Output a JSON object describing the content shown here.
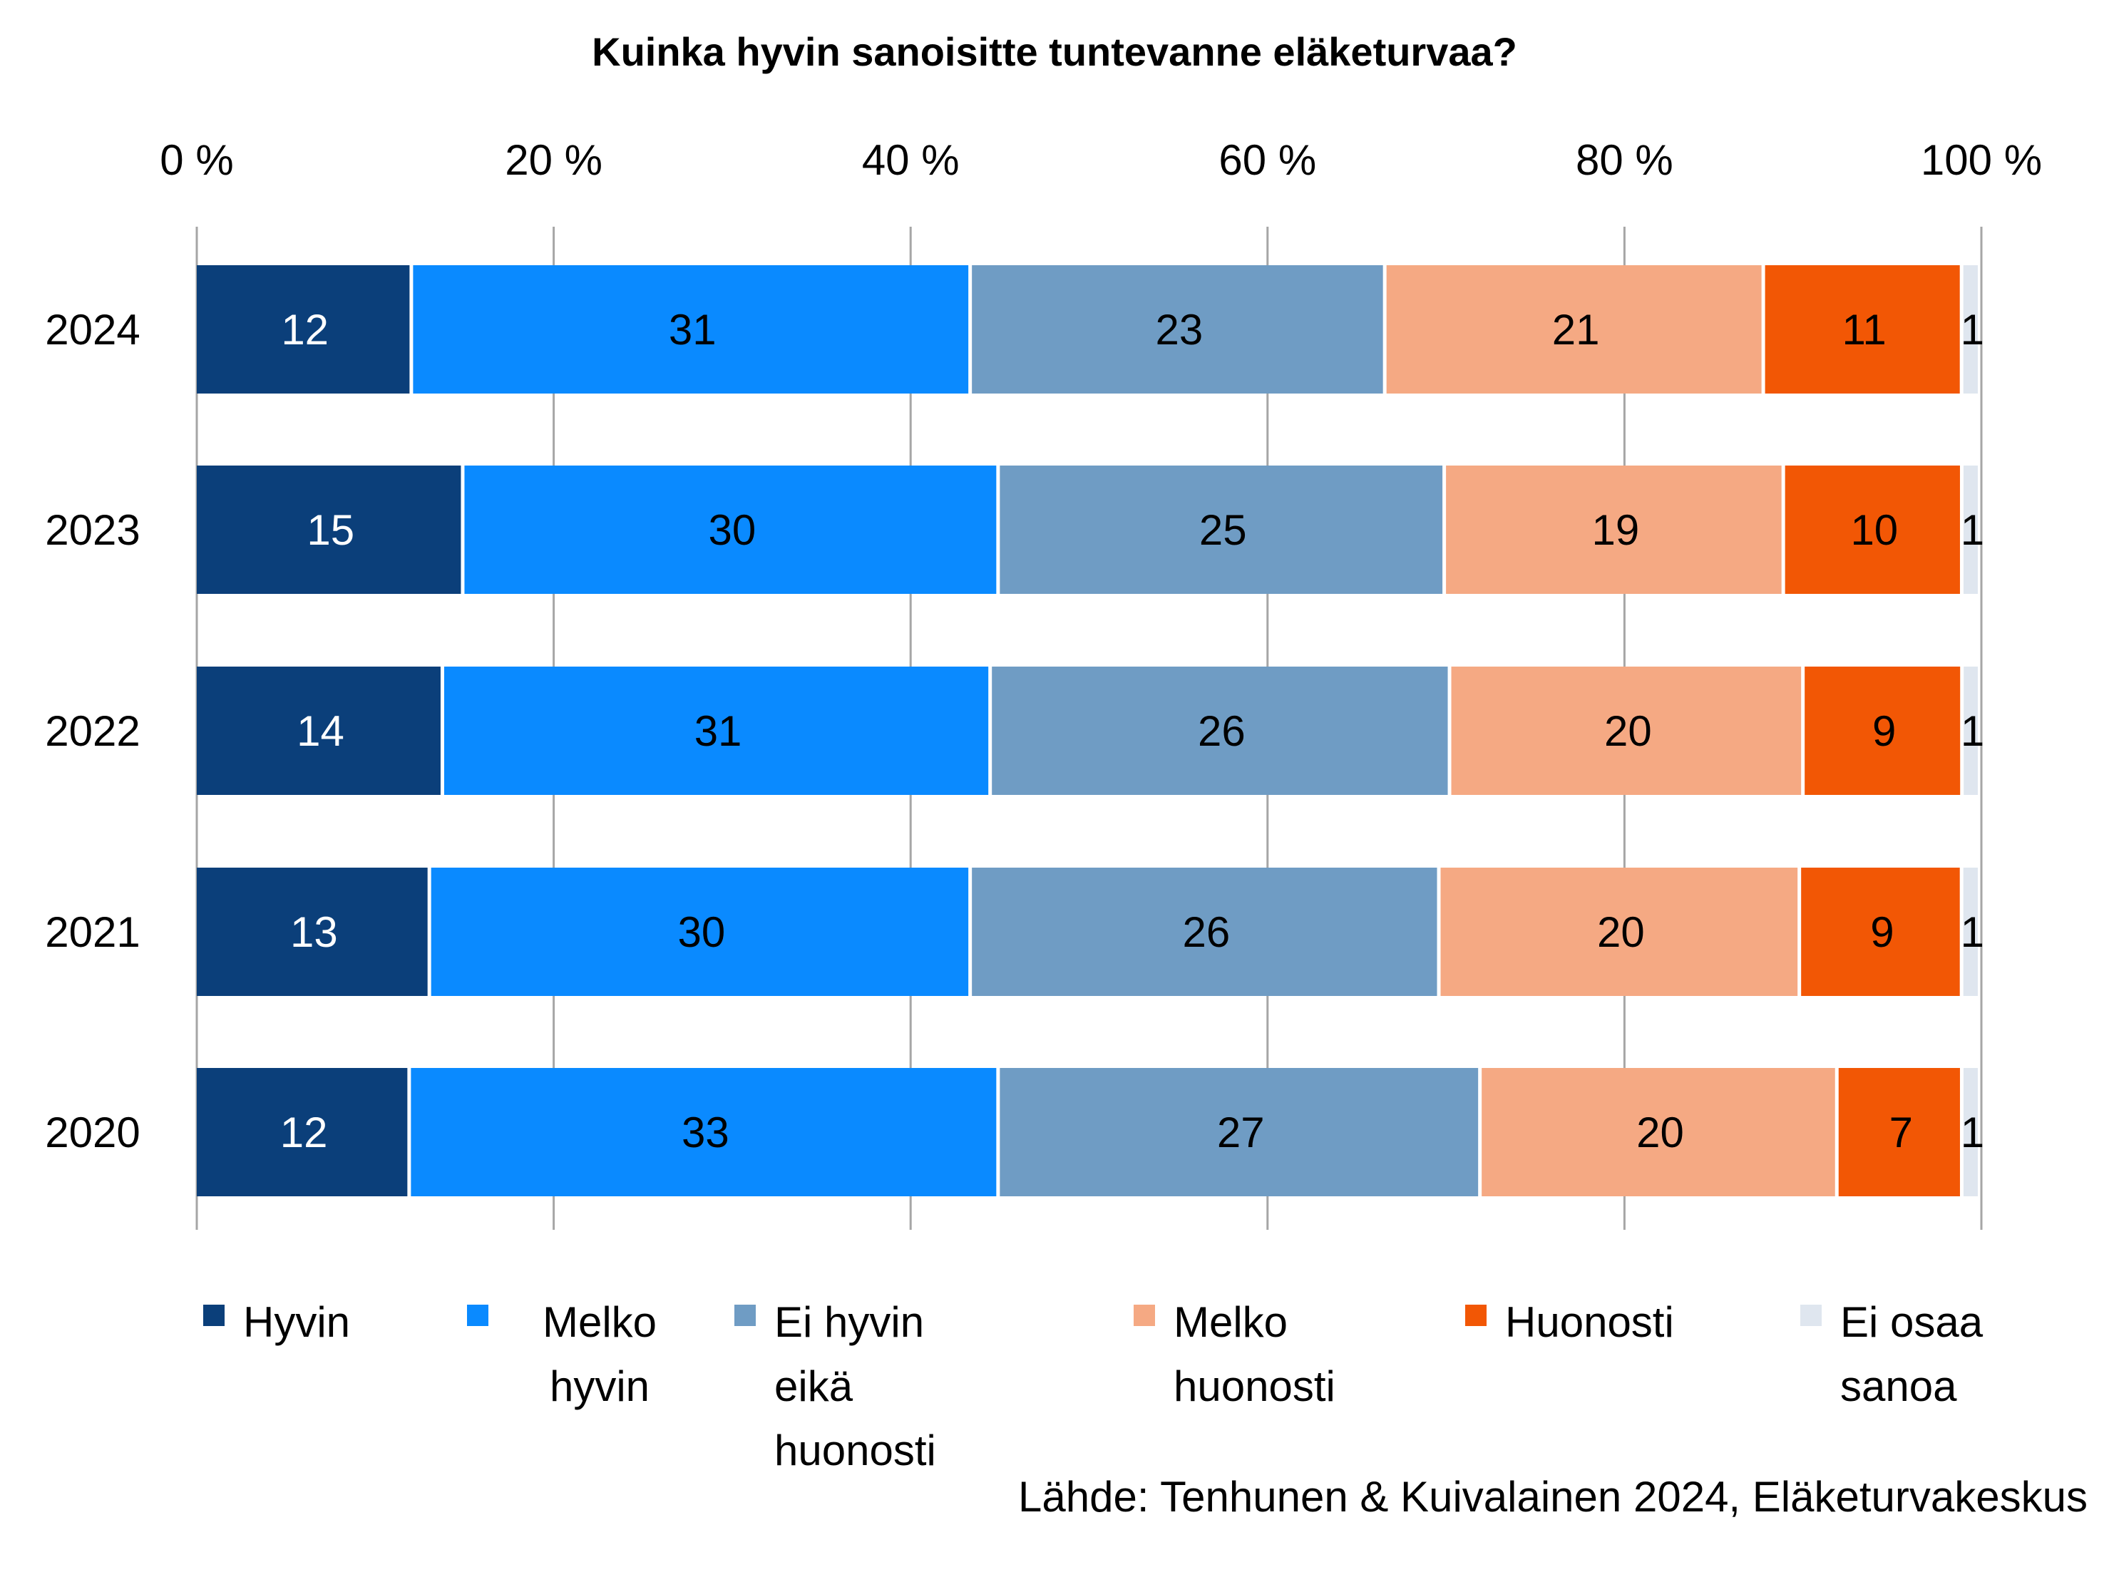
{
  "chart_data": {
    "type": "bar",
    "orientation": "horizontal",
    "stacked": true,
    "title": "Kuinka hyvin sanoisitte tuntevanne eläketurvaa?",
    "categories": [
      "2024",
      "2023",
      "2022",
      "2021",
      "2020"
    ],
    "series": [
      {
        "name": "Hyvin",
        "color": "#0b3f7a",
        "label_color": "#ffffff",
        "values": [
          12,
          15,
          14,
          13,
          12
        ]
      },
      {
        "name": "Melko hyvin",
        "color": "#0a8aff",
        "label_color": "#000000",
        "values": [
          31,
          30,
          31,
          30,
          33
        ]
      },
      {
        "name": "Ei hyvin eikä huonosti",
        "color": "#6f9cc4",
        "label_color": "#000000",
        "values": [
          23,
          25,
          26,
          26,
          27
        ]
      },
      {
        "name": "Melko huonosti",
        "color": "#f5a983",
        "label_color": "#000000",
        "values": [
          21,
          19,
          20,
          20,
          20
        ]
      },
      {
        "name": "Huonosti",
        "color": "#f25705",
        "label_color": "#000000",
        "values": [
          11,
          10,
          9,
          9,
          7
        ]
      },
      {
        "name": "Ei osaa sanoa",
        "color": "#dfe6ef",
        "label_color": "#000000",
        "values": [
          1,
          1,
          1,
          1,
          1
        ]
      }
    ],
    "xlim": [
      0,
      100
    ],
    "xticks": [
      "0 %",
      "20 %",
      "40 %",
      "60 %",
      "80 %",
      "100 %"
    ],
    "xaxis_position": "top",
    "grid": true,
    "legend_position": "bottom"
  },
  "source": "Lähde: Tenhunen & Kuivalainen 2024, Eläketurvakeskus"
}
